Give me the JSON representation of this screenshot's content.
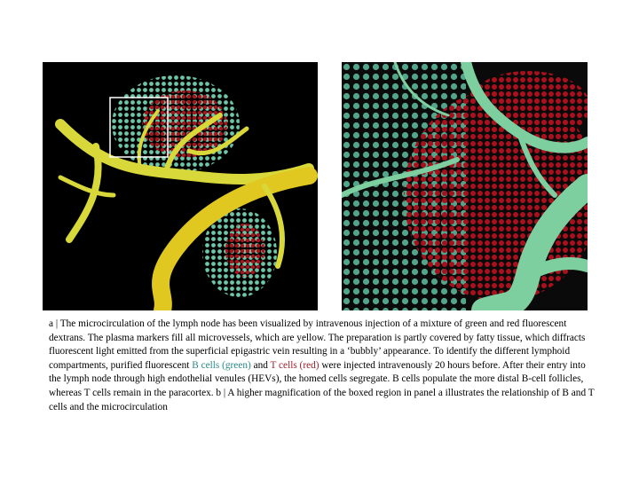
{
  "figure": {
    "caption": [
      {
        "text": "a | The microcirculation of the lymph node has been visualized by intravenous injection of a mixture of green and red fluorescent dextrans. The plasma markers fill all microvessels, which are yellow. The preparation is partly covered by fatty tissue, which diffracts fluorescent light emitted from the superficial epigastric vein resulting in a ‘bubbly’ appearance. To identify the different lymphoid compartments, purified fluorescent ",
        "color": "#000000"
      },
      {
        "text": "B cells (green)",
        "color": "#2a8a8a"
      },
      {
        "text": " and ",
        "color": "#000000"
      },
      {
        "text": "T cells (red)",
        "color": "#a0202a"
      },
      {
        "text": " were injected intravenously 20 hours before. After their entry into the lymph node through high endothelial venules (HEVs), the homed cells segregate. B cells populate the more distal B-cell follicles, whereas T cells remain in the paracortex. b | A higher magnification of the boxed region in panel a illustrates the relationship of B and T cells and the microcirculation",
        "color": "#000000"
      }
    ]
  }
}
